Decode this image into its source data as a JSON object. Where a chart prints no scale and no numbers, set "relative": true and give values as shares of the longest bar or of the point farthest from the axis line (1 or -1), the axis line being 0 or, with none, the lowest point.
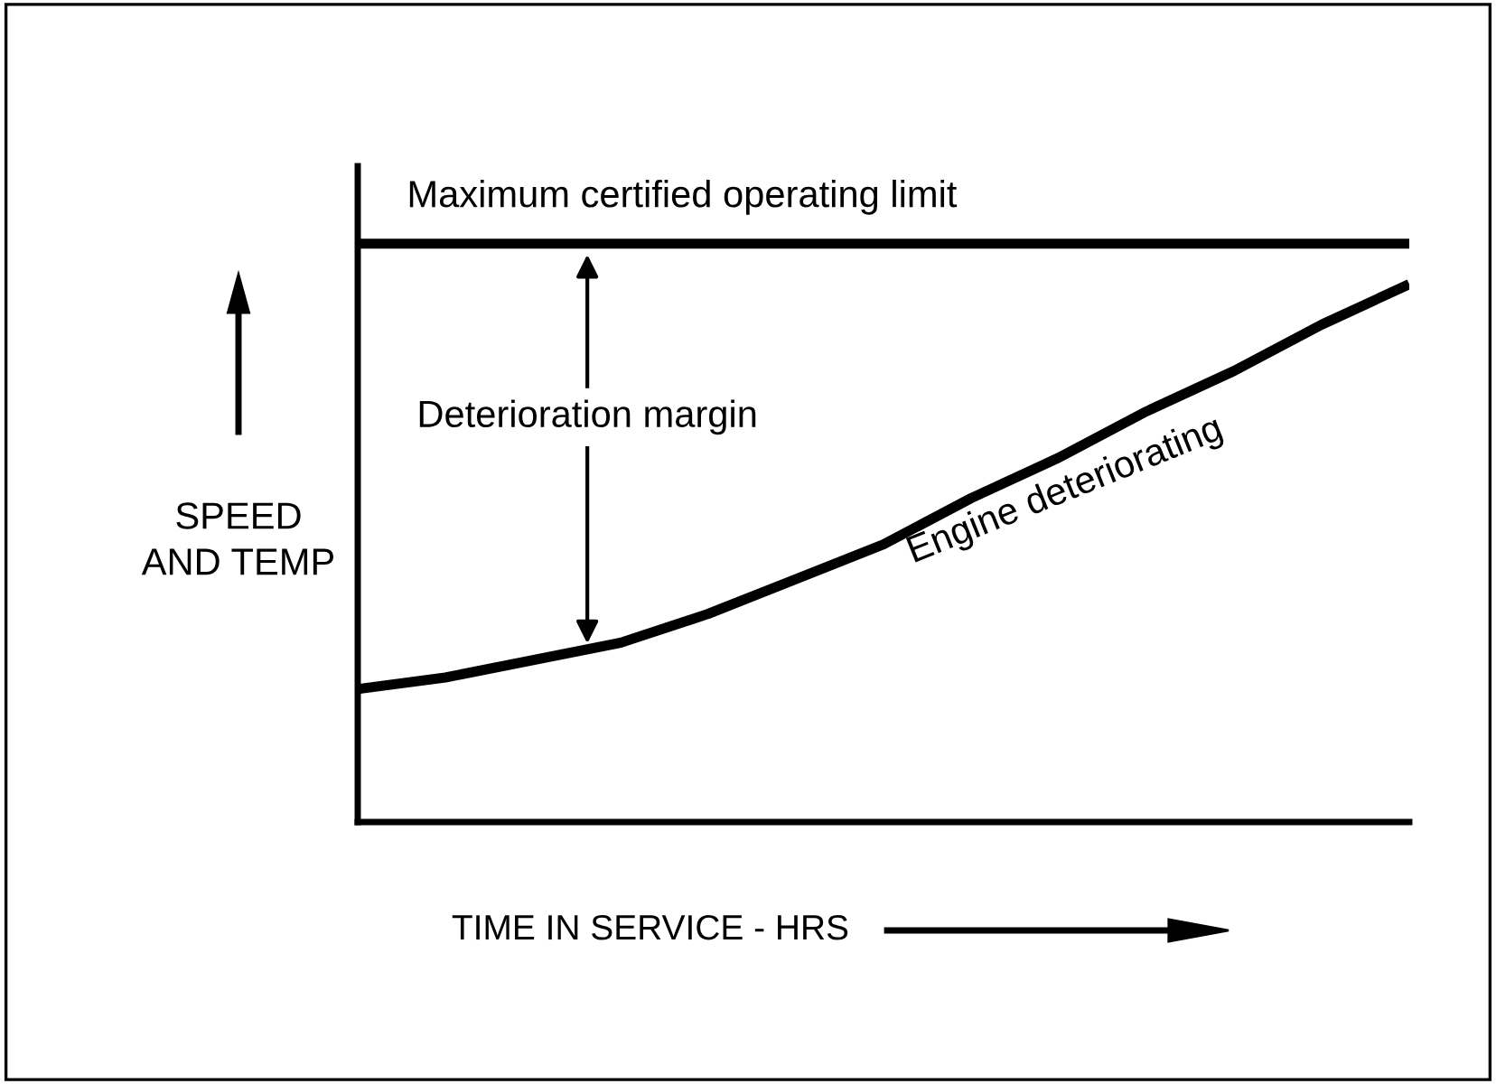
{
  "chart_data": {
    "type": "line",
    "relative": true,
    "xlabel": "TIME IN SERVICE - HRS",
    "ylabel": "SPEED\nAND TEMP",
    "categories": [
      null,
      null,
      null,
      null,
      null,
      null,
      null,
      null,
      null,
      null,
      null,
      null,
      null
    ],
    "series": [
      {
        "name": "Maximum certified operating limit",
        "color": "#000000",
        "values": [
          1,
          1,
          1,
          1,
          1,
          1,
          1,
          1,
          1,
          1,
          1,
          1,
          1
        ]
      },
      {
        "name": "Engine deteriorating",
        "color": "#000000",
        "values": [
          0.23,
          0.25,
          0.28,
          0.31,
          0.36,
          0.42,
          0.48,
          0.56,
          0.63,
          0.71,
          0.78,
          0.86,
          0.93
        ]
      }
    ],
    "annotations": [
      "Deterioration margin"
    ],
    "legend": false,
    "marker": "none",
    "line_style": "solid"
  }
}
